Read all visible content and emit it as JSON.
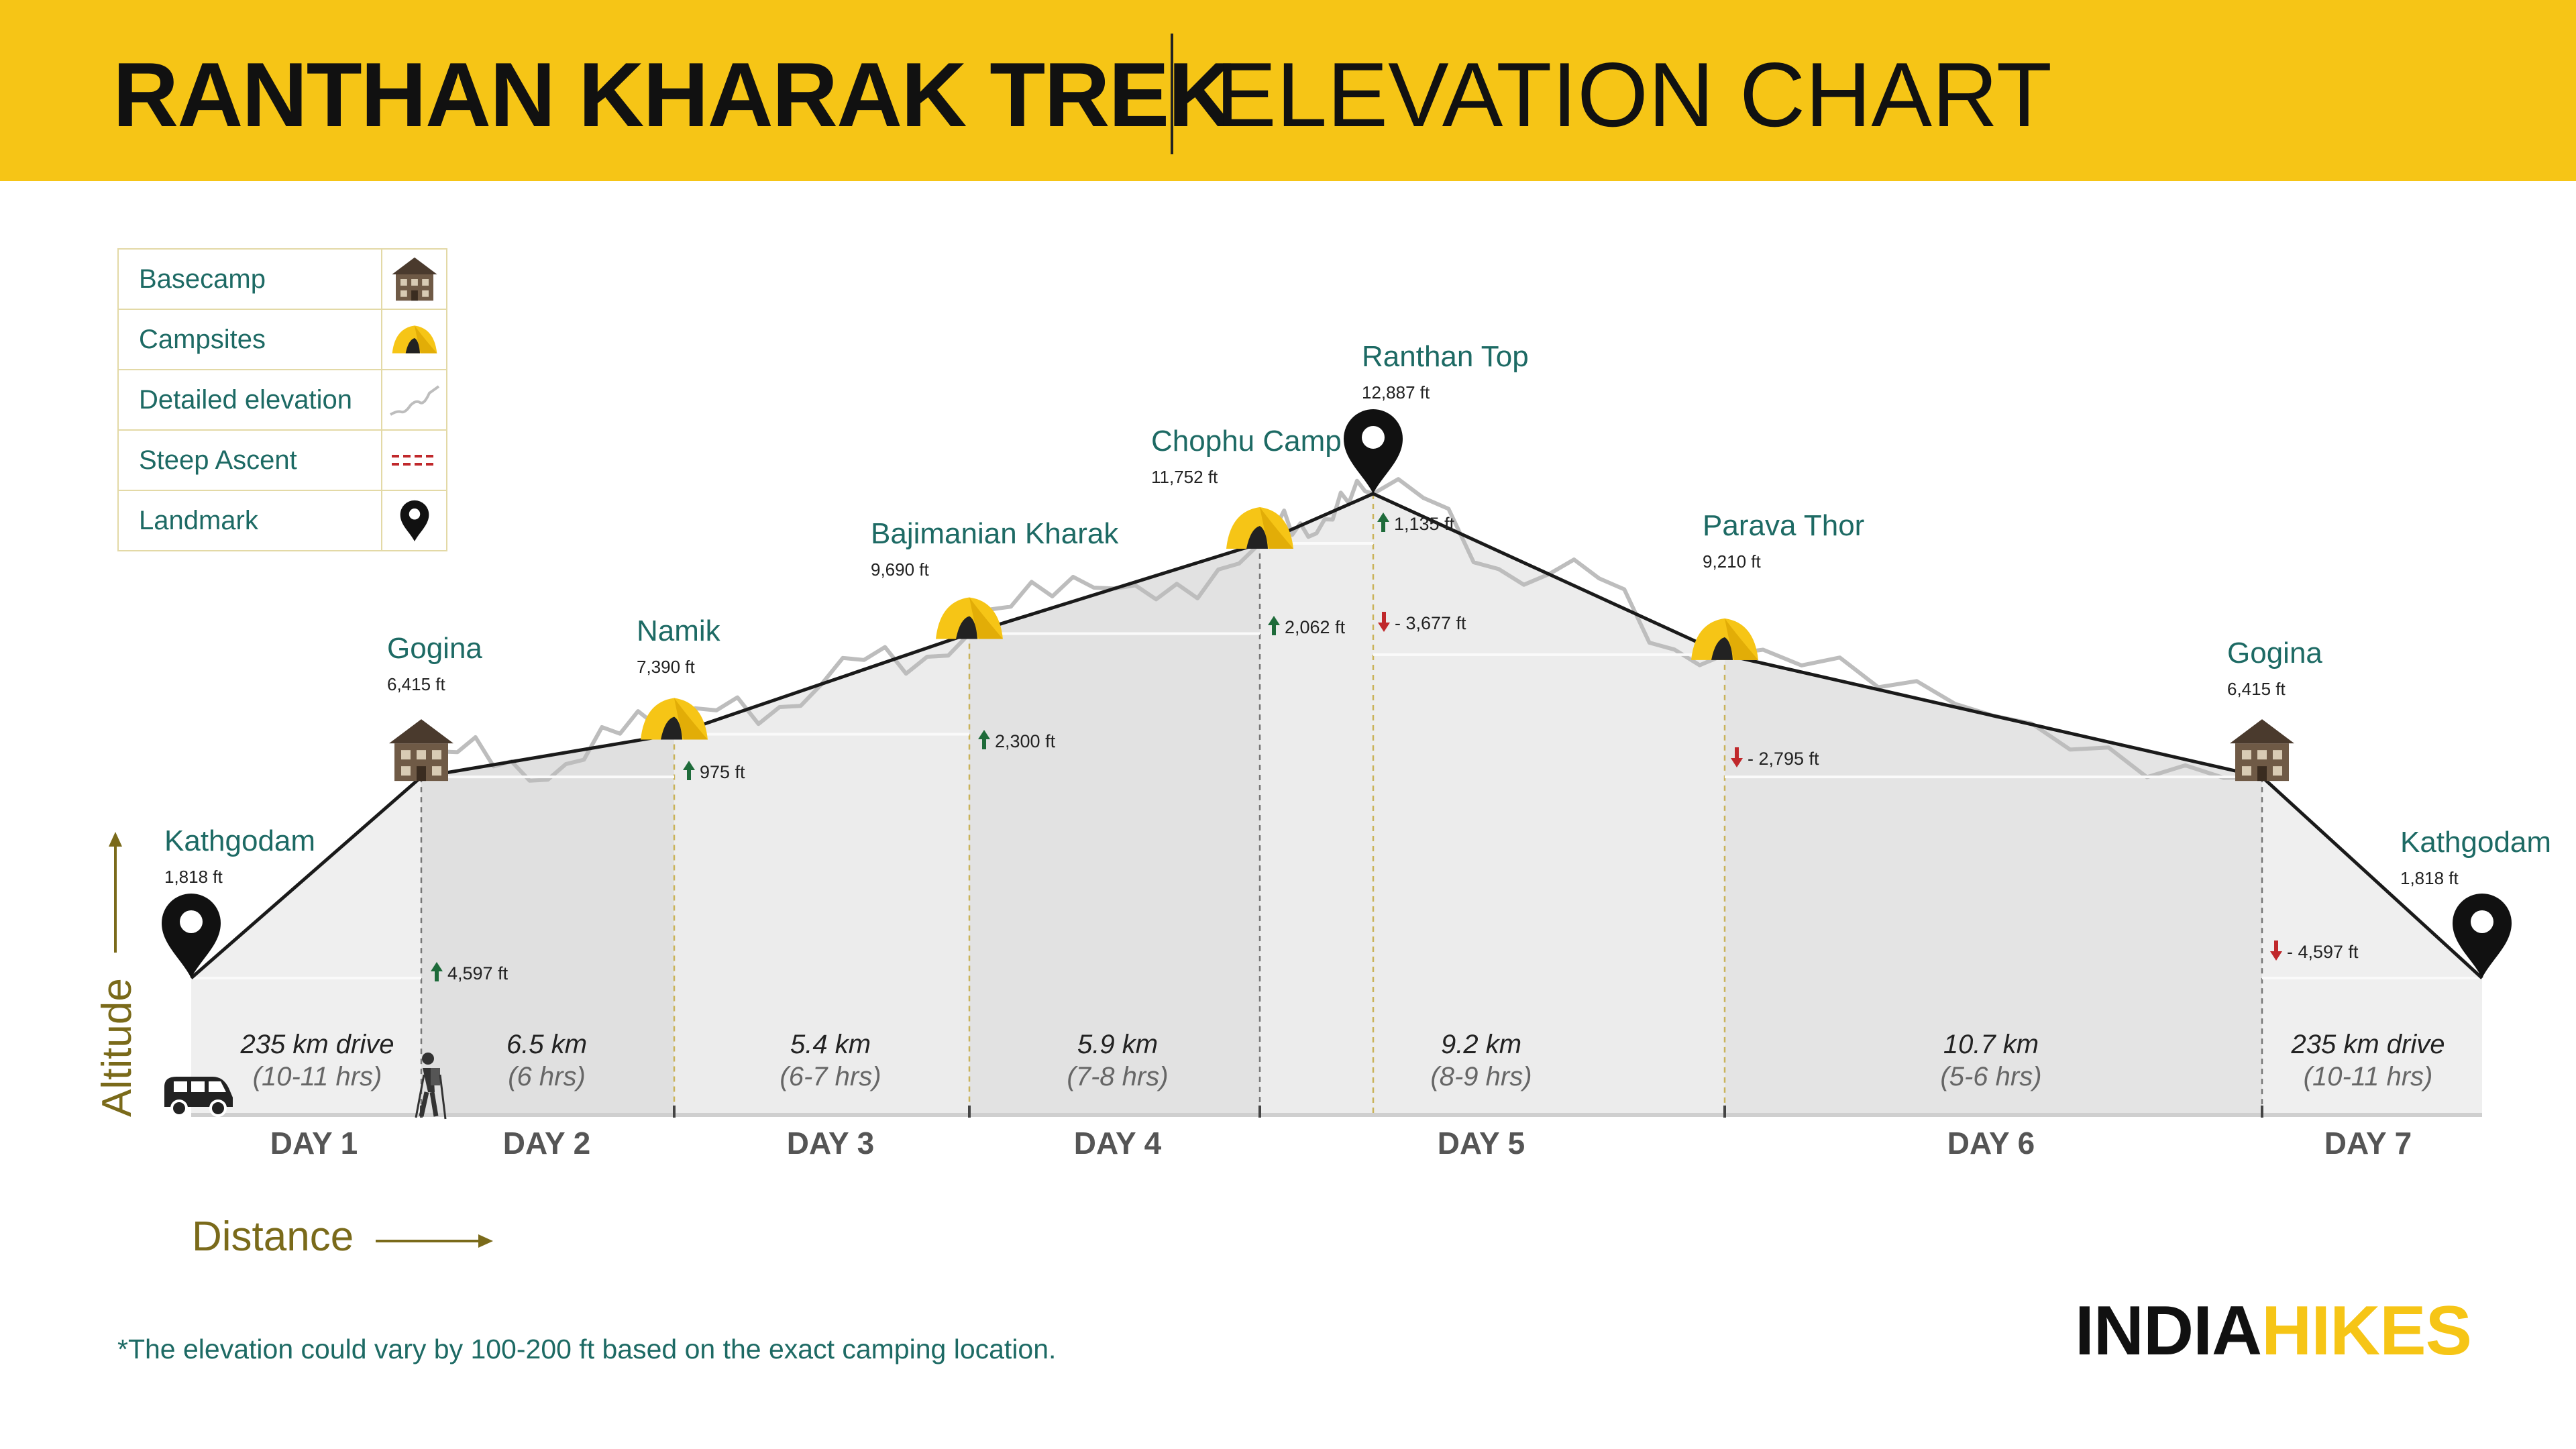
{
  "header": {
    "title_main": "RANTHAN KHARAK TREK",
    "title_sub": "ELEVATION CHART"
  },
  "colors": {
    "header_yellow": "#f6c516",
    "teal_text": "#1d6a64",
    "axis_olive": "#7a6a1a",
    "up_arrow": "#1e6b3a",
    "down_arrow": "#c0282b"
  },
  "legend": [
    {
      "label": "Basecamp",
      "icon": "house-icon"
    },
    {
      "label": "Campsites",
      "icon": "tent-icon"
    },
    {
      "label": "Detailed elevation",
      "icon": "elevation-line-icon"
    },
    {
      "label": "Steep Ascent",
      "icon": "steep-ascent-icon"
    },
    {
      "label": "Landmark",
      "icon": "location-pin-icon"
    }
  ],
  "axes": {
    "y_label": "Altitude",
    "x_label": "Distance"
  },
  "footnote": "*The elevation could vary by 100-200 ft based on the exact camping location.",
  "logo": {
    "part1": "INDIA",
    "part2": "HIKES"
  },
  "chart_data": {
    "type": "area",
    "points": [
      {
        "name": "Kathgodam",
        "elevation": "1,818 ft",
        "value": 1818,
        "icon": "location-pin-icon"
      },
      {
        "name": "Gogina",
        "elevation": "6,415 ft",
        "value": 6415,
        "icon": "house-icon"
      },
      {
        "name": "Namik",
        "elevation": "7,390 ft",
        "value": 7390,
        "icon": "tent-icon"
      },
      {
        "name": "Bajimanian Kharak",
        "elevation": "9,690 ft",
        "value": 9690,
        "icon": "tent-icon"
      },
      {
        "name": "Chophu Camp",
        "elevation": "11,752 ft",
        "value": 11752,
        "icon": "tent-icon"
      },
      {
        "name": "Ranthan Top",
        "elevation": "12,887 ft",
        "value": 12887,
        "icon": "location-pin-icon"
      },
      {
        "name": "Parava Thor",
        "elevation": "9,210 ft",
        "value": 9210,
        "icon": "tent-icon"
      },
      {
        "name": "Gogina",
        "elevation": "6,415 ft",
        "value": 6415,
        "icon": "house-icon"
      },
      {
        "name": "Kathgodam",
        "elevation": "1,818 ft",
        "value": 1818,
        "icon": "location-pin-icon"
      }
    ],
    "changes": [
      {
        "label": "4,597 ft",
        "dir": "up"
      },
      {
        "label": "975 ft",
        "dir": "up"
      },
      {
        "label": "2,300 ft",
        "dir": "up"
      },
      {
        "label": "2,062 ft",
        "dir": "up"
      },
      {
        "label": "1,135 ft",
        "dir": "up"
      },
      {
        "label": "- 3,677 ft",
        "dir": "down"
      },
      {
        "label": "- 2,795 ft",
        "dir": "down"
      },
      {
        "label": "- 4,597 ft",
        "dir": "down"
      }
    ],
    "segments": [
      {
        "distance": "235 km drive",
        "time": "(10-11 hrs)",
        "day": "DAY 1"
      },
      {
        "distance": "6.5 km",
        "time": "(6 hrs)",
        "day": "DAY 2"
      },
      {
        "distance": "5.4 km",
        "time": "(6-7 hrs)",
        "day": "DAY 3"
      },
      {
        "distance": "5.9 km",
        "time": "(7-8 hrs)",
        "day": "DAY 4"
      },
      {
        "distance": "9.2 km",
        "time": "(8-9 hrs)",
        "day": "DAY 5"
      },
      {
        "distance": "10.7 km",
        "time": "(5-6 hrs)",
        "day": "DAY 6"
      },
      {
        "distance": "235 km drive",
        "time": "(10-11 hrs)",
        "day": "DAY 7"
      }
    ]
  }
}
